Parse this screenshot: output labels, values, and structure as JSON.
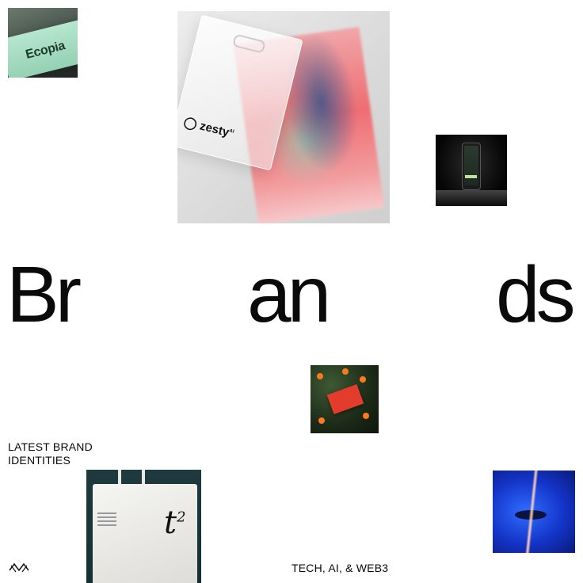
{
  "tiles": {
    "ecopia": {
      "text": "Ecopia"
    },
    "zesty": {
      "brand": "zesty",
      "suffix": "AI"
    }
  },
  "heading": {
    "part1": "Br",
    "part2": "an",
    "part3": "ds"
  },
  "labels": {
    "latest": "LATEST BRAND IDENTITIES",
    "tech": "TECH, AI, & WEB3"
  },
  "icons": {
    "logo": "abstract-logo-icon"
  },
  "colors": {
    "background": "#ffffff",
    "text": "#0a0a0a"
  }
}
